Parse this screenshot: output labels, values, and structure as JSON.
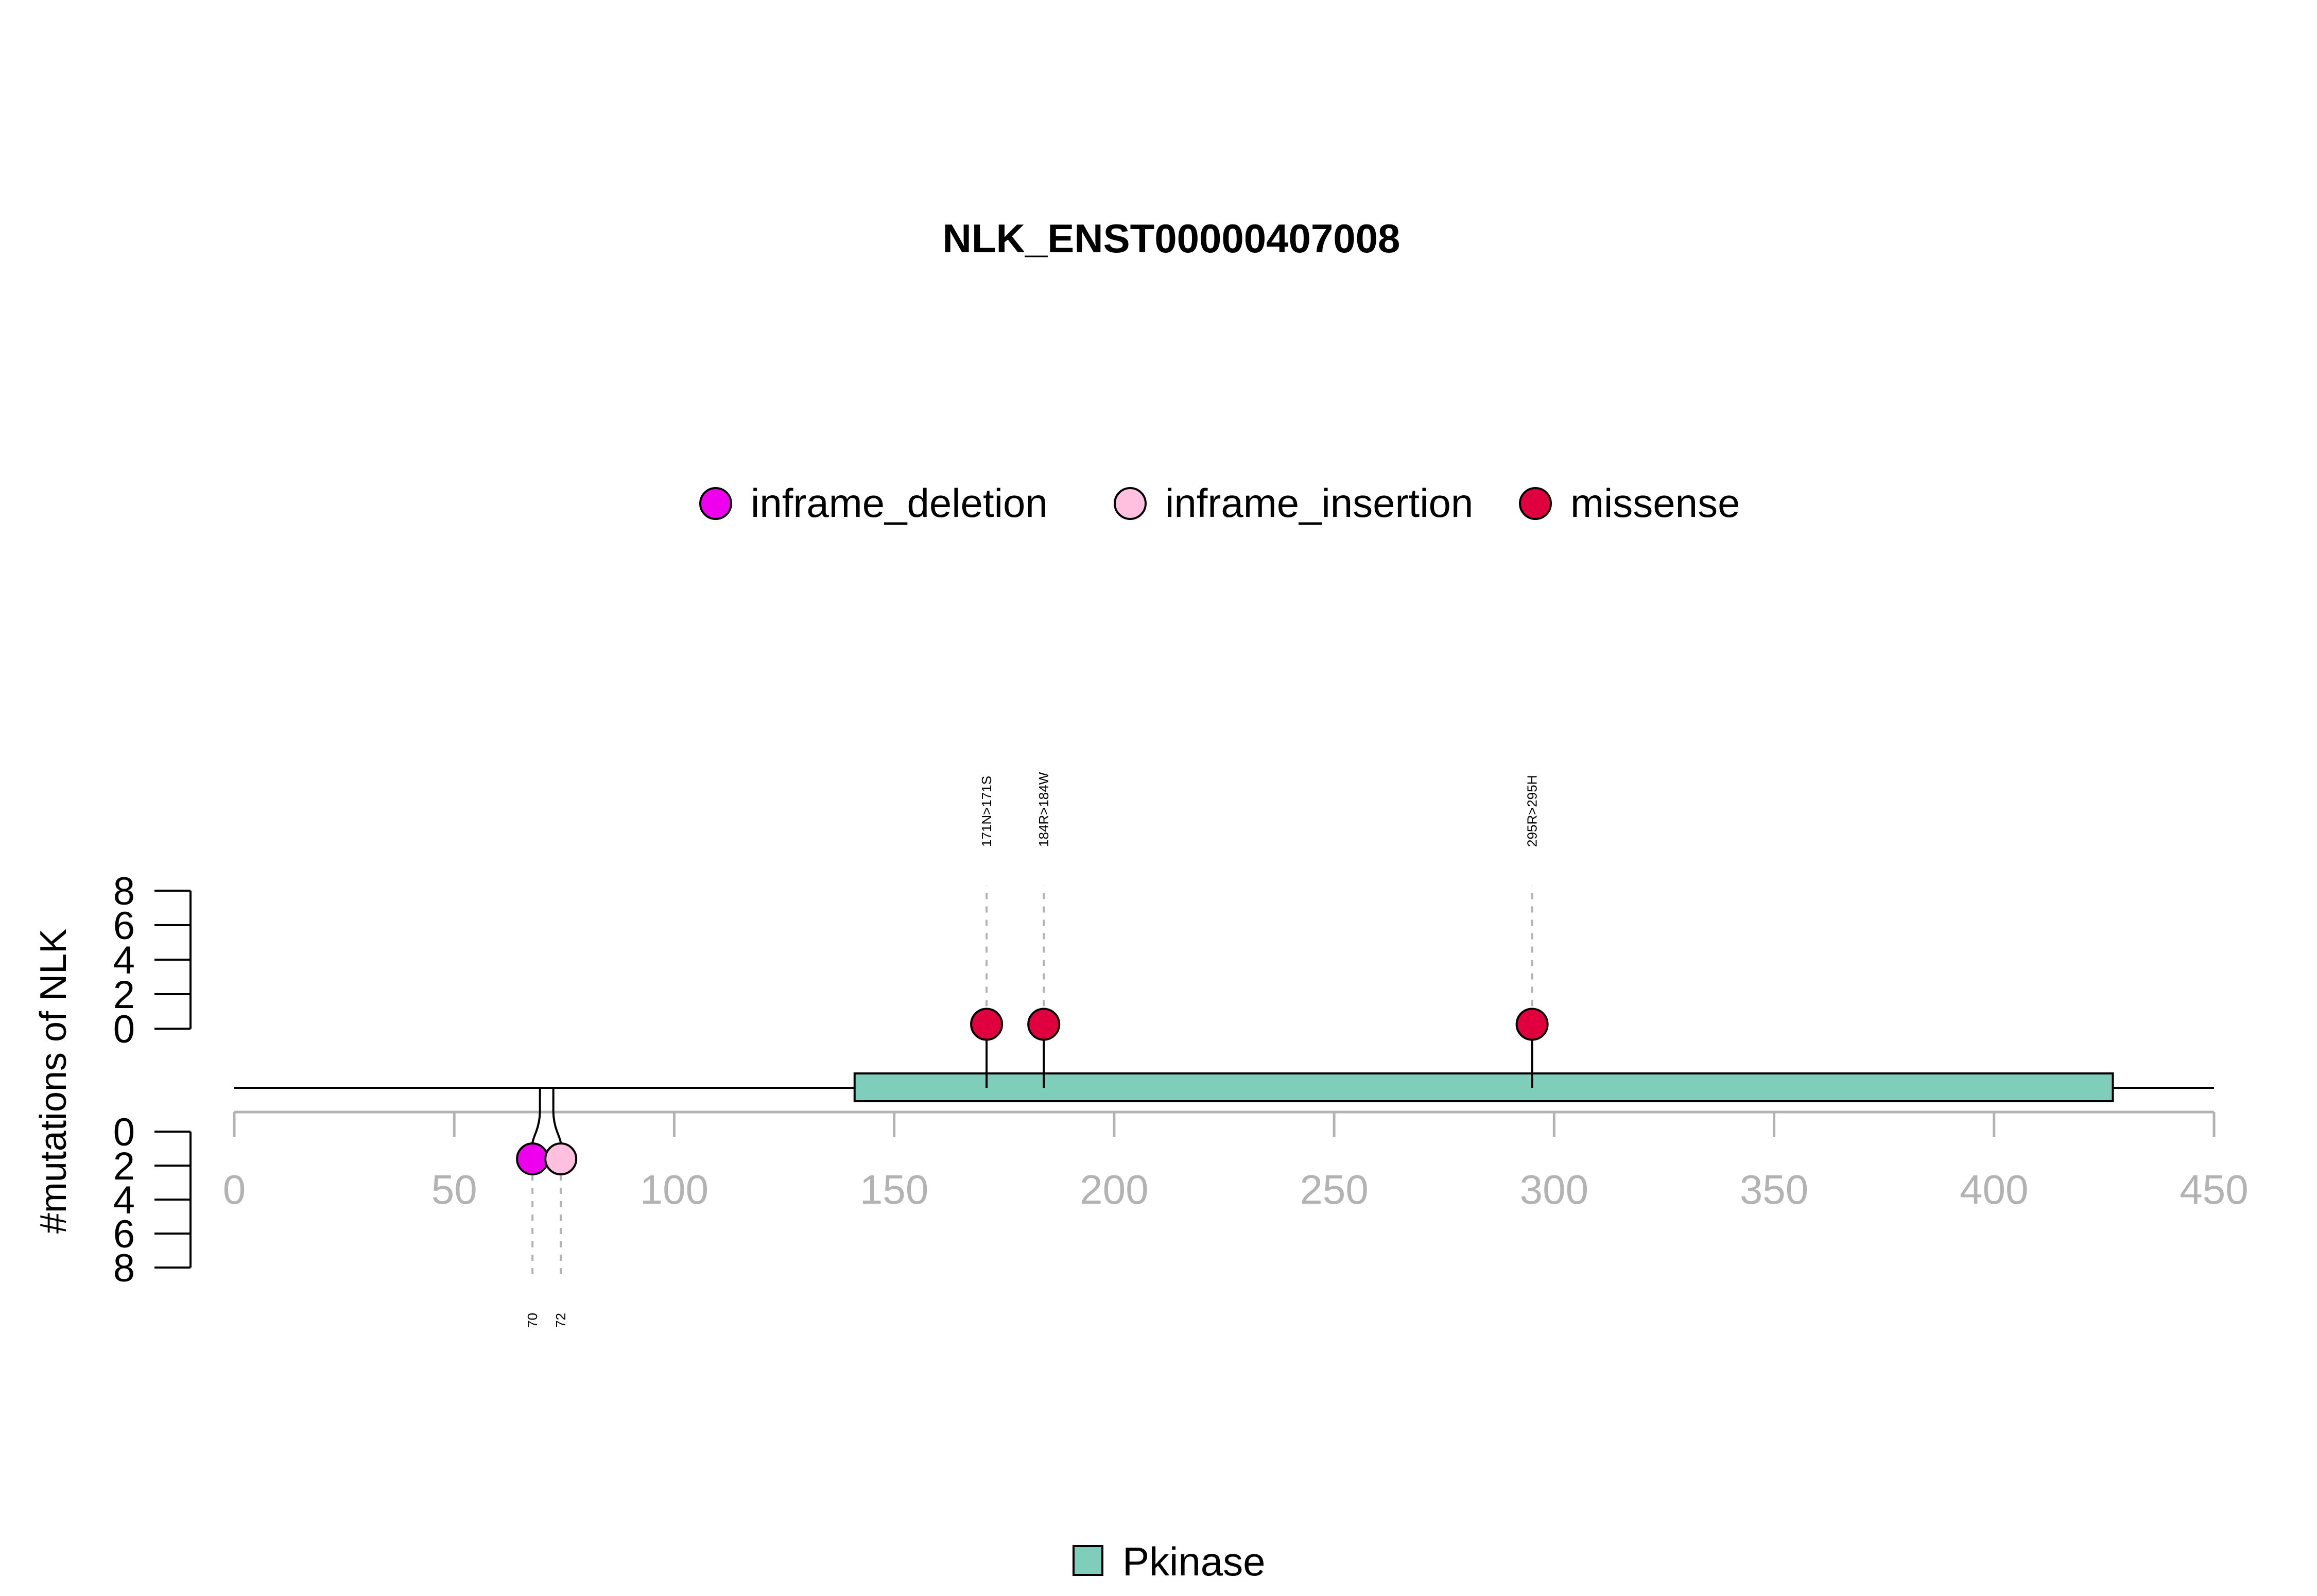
{
  "chart_data": {
    "type": "lollipop",
    "title": "NLK_ENST00000407008",
    "ylabel": "#mutations of NLK",
    "xlim": [
      0,
      450
    ],
    "x_ticks": [
      "0",
      "50",
      "100",
      "150",
      "200",
      "250",
      "300",
      "350",
      "400",
      "450"
    ],
    "y_ticks_up": [
      "0",
      "2",
      "4",
      "6",
      "8"
    ],
    "y_ticks_down": [
      "0",
      "2",
      "4",
      "6",
      "8"
    ],
    "ylim_up": [
      0,
      8
    ],
    "ylim_down": [
      0,
      8
    ],
    "legend": {
      "placement": "top-center",
      "items": [
        {
          "label": "inframe_deletion",
          "color": "#ee00ee"
        },
        {
          "label": "inframe_insertion",
          "color": "#ffc0e0"
        },
        {
          "label": "missense",
          "color": "#e00040"
        }
      ]
    },
    "domain_legend": {
      "placement": "bottom-center",
      "items": [
        {
          "label": "Pkinase",
          "color": "#7fcdbb"
        }
      ]
    },
    "domains": [
      {
        "name": "Pkinase",
        "start": 141,
        "end": 427,
        "color": "#7fcdbb"
      }
    ],
    "mutations_up": [
      {
        "position": 171,
        "count": 1,
        "type": "missense",
        "label": "171N>171S"
      },
      {
        "position": 184,
        "count": 1,
        "type": "missense",
        "label": "184R>184W"
      },
      {
        "position": 295,
        "count": 1,
        "type": "missense",
        "label": "295R>295H"
      }
    ],
    "mutations_down": [
      {
        "position": 70,
        "count": 1,
        "type": "inframe_deletion",
        "label": "70"
      },
      {
        "position": 72,
        "count": 1,
        "type": "inframe_insertion",
        "label": "72"
      }
    ]
  }
}
